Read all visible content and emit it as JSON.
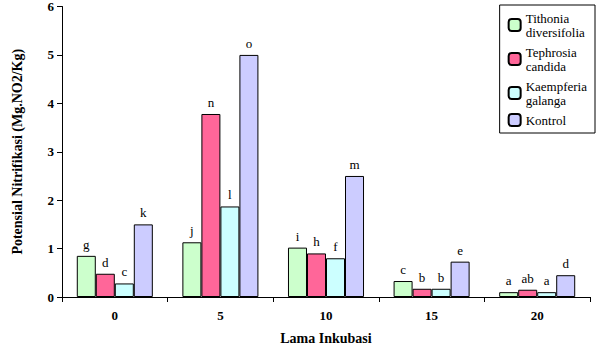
{
  "chart_data": {
    "type": "bar",
    "x_label": "Lama Inkubasi",
    "y_label": "Potensial Nitrifikasi (Mg.NO2/Kg)",
    "categories": [
      "0",
      "5",
      "10",
      "15",
      "20"
    ],
    "series": [
      {
        "name": "Tithonia diversifolia",
        "color": "#ccffcc",
        "values": [
          0.85,
          1.13,
          1.02,
          0.33,
          0.1
        ],
        "value_labels": [
          "g",
          "j",
          "i",
          "c",
          "a"
        ]
      },
      {
        "name": "Tephrosia candida",
        "color": "#ff6699",
        "values": [
          0.48,
          3.78,
          0.9,
          0.17,
          0.15
        ],
        "value_labels": [
          "d",
          "n",
          "h",
          "b",
          "ab"
        ]
      },
      {
        "name": "Kaempferia galanga",
        "color": "#ccffff",
        "values": [
          0.28,
          1.87,
          0.8,
          0.17,
          0.1
        ],
        "value_labels": [
          "c",
          "l",
          "f",
          "b",
          "a"
        ]
      },
      {
        "name": "Kontrol",
        "color": "#ccccff",
        "values": [
          1.5,
          5.0,
          2.5,
          0.73,
          0.45
        ],
        "value_labels": [
          "k",
          "o",
          "m",
          "e",
          "d"
        ]
      }
    ],
    "ylim": [
      0,
      6
    ],
    "yticks": [
      0,
      1,
      2,
      3,
      4,
      5,
      6
    ],
    "grid": false,
    "legend": "top-right",
    "data_labels": true
  }
}
